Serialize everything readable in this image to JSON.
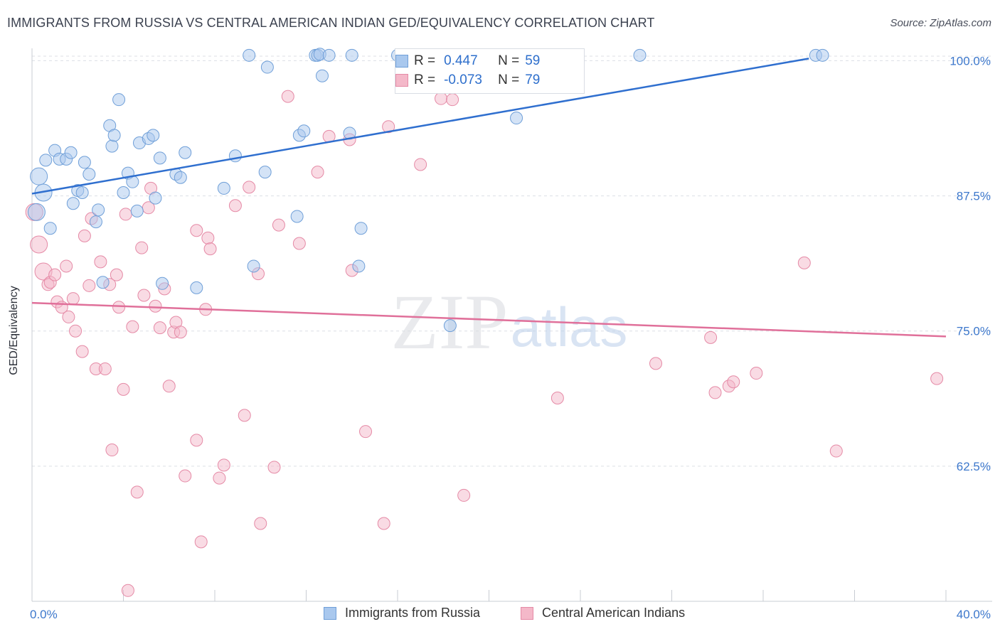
{
  "header": {
    "title": "IMMIGRANTS FROM RUSSIA VS CENTRAL AMERICAN INDIAN GED/EQUIVALENCY CORRELATION CHART",
    "source": "Source: ZipAtlas.com"
  },
  "watermark": {
    "zip": "ZIP",
    "atlas": "atlas"
  },
  "legend": {
    "rows": [
      {
        "r_label": "R =",
        "r_value": "0.447",
        "n_label": "N =",
        "n_value": "59"
      },
      {
        "r_label": "R =",
        "r_value": "-0.073",
        "n_label": "N =",
        "n_value": "79"
      }
    ]
  },
  "bottom_legend": [
    "Immigrants from Russia",
    "Central American Indians"
  ],
  "colors": {
    "blue_fill": "#a9c8ee",
    "blue_stroke": "#6f9fd8",
    "blue_line": "#2f6fcf",
    "pink_fill": "#f4b8c9",
    "pink_stroke": "#e58aa6",
    "pink_line": "#e0709a",
    "tick_label": "#3d78cc",
    "grid": "#dcdfe5"
  },
  "chart_data": {
    "type": "scatter",
    "ylabel": "GED/Equivalency",
    "xlim": [
      0,
      40
    ],
    "ylim": [
      50,
      102
    ],
    "x_tick_labels": [
      {
        "value": 0,
        "label": "0.0%"
      },
      {
        "value": 40,
        "label": "40.0%"
      }
    ],
    "y_tick_labels": [
      {
        "value": 100,
        "label": "100.0%"
      },
      {
        "value": 87.5,
        "label": "87.5%"
      },
      {
        "value": 75,
        "label": "75.0%"
      },
      {
        "value": 62.5,
        "label": "62.5%"
      }
    ],
    "grid": "horizontal dashed",
    "series": [
      {
        "name": "Immigrants from Russia",
        "color": "#a9c8ee",
        "trend": [
          [
            0,
            87.7
          ],
          [
            34.0,
            100.2
          ]
        ],
        "points": [
          [
            0.2,
            86.0
          ],
          [
            0.3,
            89.3
          ],
          [
            0.5,
            87.8
          ],
          [
            0.6,
            90.8
          ],
          [
            0.8,
            84.5
          ],
          [
            1.0,
            91.7
          ],
          [
            1.2,
            90.9
          ],
          [
            1.5,
            90.9
          ],
          [
            1.7,
            91.5
          ],
          [
            1.8,
            86.8
          ],
          [
            2.0,
            88.0
          ],
          [
            2.2,
            87.8
          ],
          [
            2.3,
            90.6
          ],
          [
            2.5,
            89.5
          ],
          [
            2.8,
            85.1
          ],
          [
            2.9,
            86.2
          ],
          [
            3.1,
            79.5
          ],
          [
            3.4,
            94.0
          ],
          [
            3.5,
            92.1
          ],
          [
            3.6,
            93.1
          ],
          [
            3.8,
            96.4
          ],
          [
            4.0,
            87.8
          ],
          [
            4.2,
            89.6
          ],
          [
            4.4,
            88.8
          ],
          [
            4.6,
            86.1
          ],
          [
            4.7,
            92.4
          ],
          [
            5.1,
            92.8
          ],
          [
            5.3,
            93.1
          ],
          [
            5.4,
            87.3
          ],
          [
            5.6,
            91.0
          ],
          [
            5.7,
            79.4
          ],
          [
            6.3,
            89.5
          ],
          [
            6.5,
            89.2
          ],
          [
            6.7,
            91.5
          ],
          [
            7.2,
            79.0
          ],
          [
            8.4,
            88.2
          ],
          [
            8.9,
            91.2
          ],
          [
            9.5,
            100.5
          ],
          [
            9.7,
            81.0
          ],
          [
            10.2,
            89.7
          ],
          [
            10.3,
            99.4
          ],
          [
            11.6,
            85.6
          ],
          [
            11.7,
            93.1
          ],
          [
            11.9,
            93.5
          ],
          [
            12.4,
            100.5
          ],
          [
            12.5,
            100.5
          ],
          [
            12.6,
            100.6
          ],
          [
            12.7,
            98.6
          ],
          [
            13.0,
            100.5
          ],
          [
            13.9,
            93.3
          ],
          [
            14.0,
            100.5
          ],
          [
            14.4,
            84.5
          ],
          [
            16.0,
            100.5
          ],
          [
            18.3,
            75.5
          ],
          [
            21.2,
            94.7
          ],
          [
            26.6,
            100.5
          ],
          [
            34.3,
            100.5
          ],
          [
            34.6,
            100.5
          ],
          [
            14.3,
            81.0
          ]
        ]
      },
      {
        "name": "Central American Indians",
        "color": "#f4b8c9",
        "trend": [
          [
            0,
            77.6
          ],
          [
            40,
            74.5
          ]
        ],
        "points": [
          [
            0.1,
            86.0
          ],
          [
            0.3,
            83.0
          ],
          [
            0.5,
            80.5
          ],
          [
            0.7,
            79.3
          ],
          [
            0.8,
            79.5
          ],
          [
            1.0,
            80.2
          ],
          [
            1.1,
            77.7
          ],
          [
            1.3,
            77.2
          ],
          [
            1.5,
            81.0
          ],
          [
            1.6,
            76.3
          ],
          [
            1.8,
            78.0
          ],
          [
            1.9,
            75.0
          ],
          [
            2.2,
            73.1
          ],
          [
            2.3,
            83.8
          ],
          [
            2.5,
            79.2
          ],
          [
            2.6,
            85.4
          ],
          [
            2.8,
            71.5
          ],
          [
            3.0,
            81.4
          ],
          [
            3.2,
            71.5
          ],
          [
            3.4,
            79.3
          ],
          [
            3.5,
            64.0
          ],
          [
            3.7,
            80.2
          ],
          [
            3.8,
            77.2
          ],
          [
            4.0,
            69.6
          ],
          [
            4.1,
            85.8
          ],
          [
            4.2,
            51.0
          ],
          [
            4.4,
            75.4
          ],
          [
            4.6,
            60.1
          ],
          [
            4.8,
            82.7
          ],
          [
            4.9,
            78.3
          ],
          [
            5.1,
            86.4
          ],
          [
            5.2,
            88.2
          ],
          [
            5.4,
            77.3
          ],
          [
            5.6,
            75.3
          ],
          [
            5.8,
            78.9
          ],
          [
            6.0,
            69.9
          ],
          [
            6.2,
            74.9
          ],
          [
            6.3,
            75.8
          ],
          [
            6.5,
            74.9
          ],
          [
            6.7,
            61.6
          ],
          [
            7.2,
            84.3
          ],
          [
            7.2,
            64.9
          ],
          [
            7.4,
            55.5
          ],
          [
            7.6,
            77.0
          ],
          [
            7.7,
            83.6
          ],
          [
            7.8,
            82.6
          ],
          [
            8.2,
            61.4
          ],
          [
            8.4,
            62.6
          ],
          [
            8.9,
            86.6
          ],
          [
            9.3,
            67.2
          ],
          [
            9.5,
            88.3
          ],
          [
            9.9,
            80.3
          ],
          [
            10.0,
            57.2
          ],
          [
            10.6,
            62.4
          ],
          [
            10.8,
            84.8
          ],
          [
            11.2,
            96.7
          ],
          [
            11.7,
            83.1
          ],
          [
            12.5,
            89.7
          ],
          [
            13.0,
            93.0
          ],
          [
            13.9,
            92.7
          ],
          [
            14.0,
            80.6
          ],
          [
            14.6,
            65.7
          ],
          [
            15.4,
            57.2
          ],
          [
            15.6,
            93.9
          ],
          [
            17.0,
            90.4
          ],
          [
            17.9,
            96.5
          ],
          [
            18.4,
            96.4
          ],
          [
            18.9,
            59.8
          ],
          [
            21.4,
            100.5
          ],
          [
            23.0,
            68.8
          ],
          [
            27.3,
            72.0
          ],
          [
            29.7,
            74.4
          ],
          [
            29.9,
            69.3
          ],
          [
            30.5,
            69.9
          ],
          [
            30.7,
            70.3
          ],
          [
            31.7,
            71.1
          ],
          [
            33.8,
            81.3
          ],
          [
            35.2,
            63.9
          ],
          [
            39.6,
            70.6
          ]
        ]
      }
    ]
  }
}
